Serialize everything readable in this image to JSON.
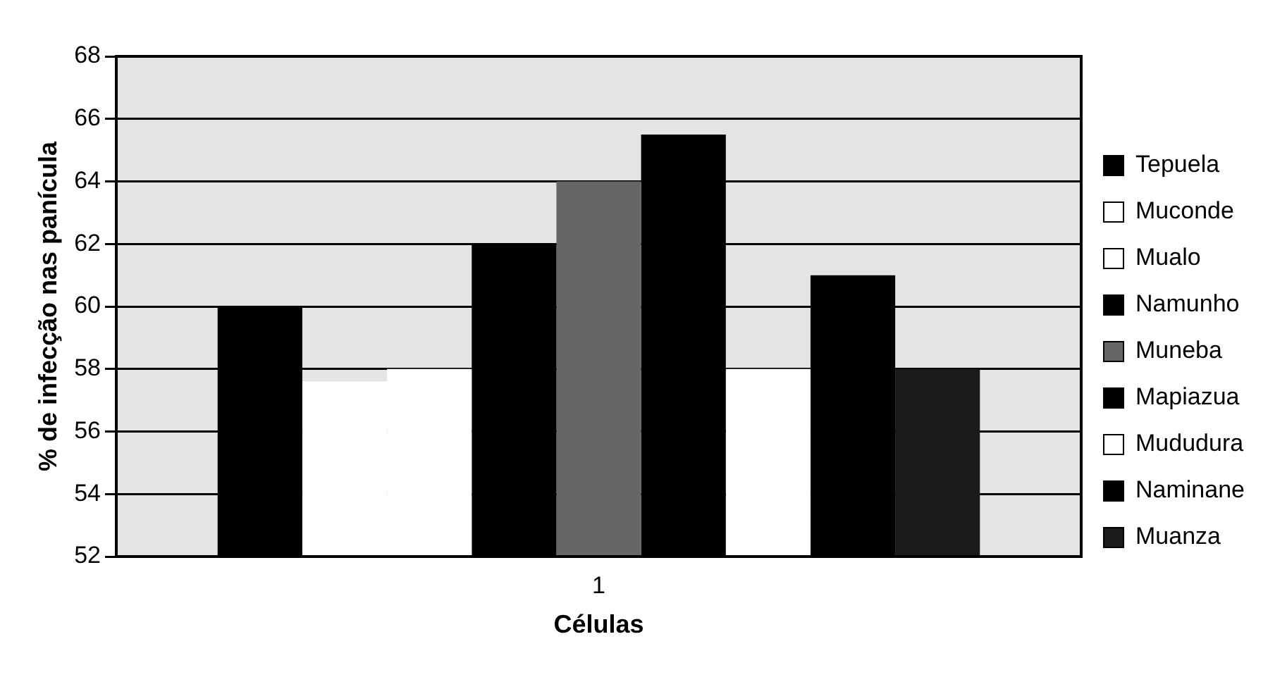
{
  "chart_data": {
    "type": "bar",
    "xlabel": "Células",
    "ylabel": "% de infecção nas panícula",
    "categories": [
      "1"
    ],
    "series": [
      {
        "name": "Tepuela",
        "color": "#000000",
        "values": [
          60
        ]
      },
      {
        "name": "Muconde",
        "color": "#ffffff",
        "values": [
          57.6
        ]
      },
      {
        "name": "Mualo",
        "color": "#ffffff",
        "values": [
          58
        ]
      },
      {
        "name": "Namunho",
        "color": "#000000",
        "values": [
          62
        ]
      },
      {
        "name": "Muneba",
        "color": "#666666",
        "values": [
          64
        ]
      },
      {
        "name": "Mapiazua",
        "color": "#000000",
        "values": [
          65.5
        ]
      },
      {
        "name": "Mududura",
        "color": "#ffffff",
        "values": [
          58
        ]
      },
      {
        "name": "Naminane",
        "color": "#000000",
        "values": [
          61
        ]
      },
      {
        "name": "Muanza",
        "color": "#1a1a1a",
        "values": [
          58
        ]
      }
    ],
    "ylim": [
      52,
      68
    ],
    "yticks": [
      52,
      54,
      56,
      58,
      60,
      62,
      64,
      66,
      68
    ],
    "grid": "y",
    "legend": "right"
  }
}
